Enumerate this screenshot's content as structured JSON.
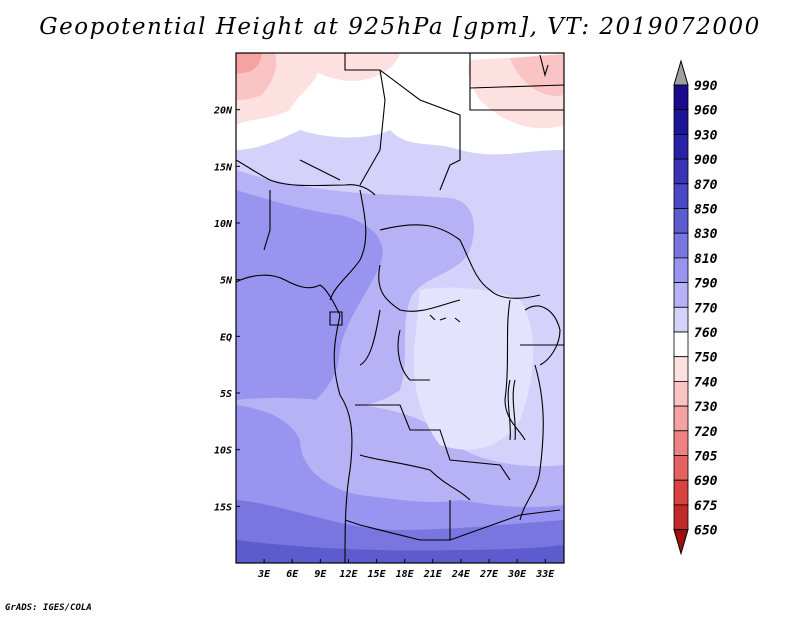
{
  "title": "Geopotential Height at 925hPa [gpm], VT: 2019072000",
  "footer": "GrADS: IGES/COLA",
  "map": {
    "lon_range": [
      0,
      35
    ],
    "lat_range": [
      -20,
      25
    ],
    "x_ticks": [
      {
        "lon": 3,
        "label": "3E"
      },
      {
        "lon": 6,
        "label": "6E"
      },
      {
        "lon": 9,
        "label": "9E"
      },
      {
        "lon": 12,
        "label": "12E"
      },
      {
        "lon": 15,
        "label": "15E"
      },
      {
        "lon": 18,
        "label": "18E"
      },
      {
        "lon": 21,
        "label": "21E"
      },
      {
        "lon": 24,
        "label": "24E"
      },
      {
        "lon": 27,
        "label": "27E"
      },
      {
        "lon": 30,
        "label": "30E"
      },
      {
        "lon": 33,
        "label": "33E"
      }
    ],
    "y_ticks": [
      {
        "lat": 20,
        "label": "20N"
      },
      {
        "lat": 15,
        "label": "15N"
      },
      {
        "lat": 10,
        "label": "10N"
      },
      {
        "lat": 5,
        "label": "5N"
      },
      {
        "lat": 0,
        "label": "EQ"
      },
      {
        "lat": -5,
        "label": "5S"
      },
      {
        "lat": -10,
        "label": "10S"
      },
      {
        "lat": -15,
        "label": "15S"
      }
    ]
  },
  "colorbar": {
    "levels": [
      {
        "label": "990",
        "color": "#1a0a8c"
      },
      {
        "label": "960",
        "color": "#1e1496"
      },
      {
        "label": "930",
        "color": "#2a22a6"
      },
      {
        "label": "900",
        "color": "#3a34b4"
      },
      {
        "label": "870",
        "color": "#4a48c2"
      },
      {
        "label": "850",
        "color": "#5c5cce"
      },
      {
        "label": "830",
        "color": "#7a76e0"
      },
      {
        "label": "810",
        "color": "#9994ef"
      },
      {
        "label": "790",
        "color": "#b6b2f5"
      },
      {
        "label": "770",
        "color": "#d4d2fb"
      },
      {
        "label": "760",
        "color": "#ffffff"
      },
      {
        "label": "750",
        "color": "#fde0e0"
      },
      {
        "label": "740",
        "color": "#fbc4c4"
      },
      {
        "label": "730",
        "color": "#f5a2a2"
      },
      {
        "label": "720",
        "color": "#ef8282"
      },
      {
        "label": "705",
        "color": "#e66262"
      },
      {
        "label": "690",
        "color": "#d94242"
      },
      {
        "label": "675",
        "color": "#c22a2a"
      },
      {
        "label": "650",
        "color": "#a81818"
      }
    ],
    "top_arrow_color": "#a0a0a0",
    "bottom_arrow_color": "#a01010"
  },
  "field_regions": [
    {
      "level": "770",
      "lon": [
        0,
        35
      ],
      "lat": [
        -20,
        25
      ]
    },
    {
      "level": "810",
      "lon": [
        0,
        12
      ],
      "lat": [
        -20,
        25
      ]
    },
    {
      "level": "830",
      "lon": [
        0,
        35
      ],
      "lat": [
        -20,
        -11
      ]
    },
    {
      "level": "850",
      "lon": [
        0,
        35
      ],
      "lat": [
        -20,
        -16
      ]
    }
  ]
}
